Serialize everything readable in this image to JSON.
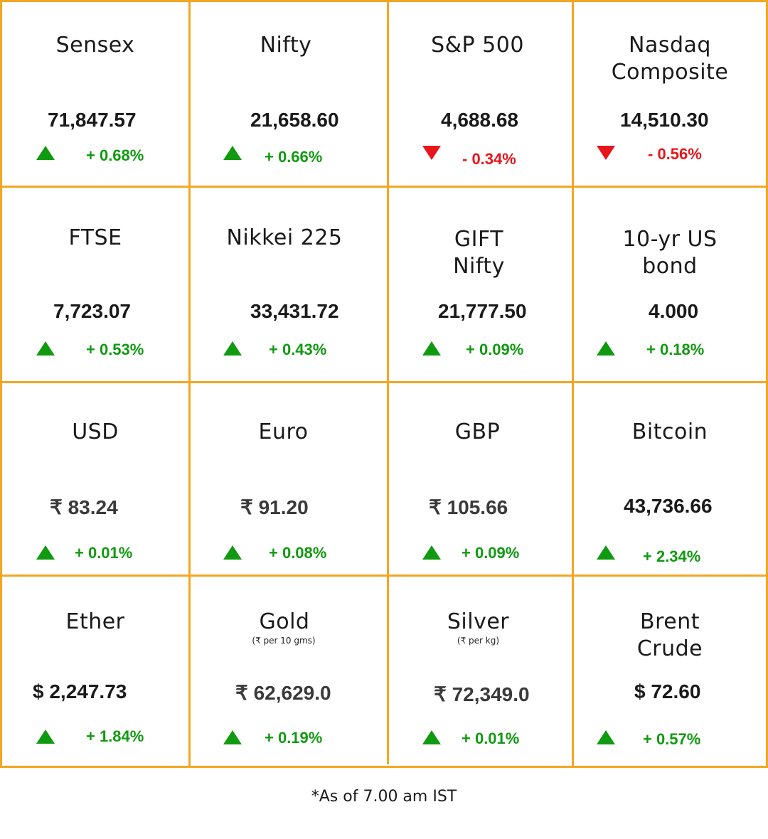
{
  "colors": {
    "border": "#f5a623",
    "up": "#109a10",
    "down": "#e8161b"
  },
  "cells": [
    {
      "title": "Sensex",
      "subtitle": "",
      "value": "71,847.57",
      "change": "+ 0.68%",
      "direction": "up"
    },
    {
      "title": "Nifty",
      "subtitle": "",
      "value": "21,658.60",
      "change": "+ 0.66%",
      "direction": "up"
    },
    {
      "title": "S&P 500",
      "subtitle": "",
      "value": "4,688.68",
      "change": "- 0.34%",
      "direction": "down"
    },
    {
      "title": "Nasdaq\nComposite",
      "subtitle": "",
      "value": "14,510.30",
      "change": "- 0.56%",
      "direction": "down"
    },
    {
      "title": "FTSE",
      "subtitle": "",
      "value": "7,723.07",
      "change": "+ 0.53%",
      "direction": "up"
    },
    {
      "title": "Nikkei 225",
      "subtitle": "",
      "value": "33,431.72",
      "change": "+ 0.43%",
      "direction": "up"
    },
    {
      "title": "GIFT\nNifty",
      "subtitle": "",
      "value": "21,777.50",
      "change": "+ 0.09%",
      "direction": "up"
    },
    {
      "title": "10-yr US\nbond",
      "subtitle": "",
      "value": "4.000",
      "change": "+ 0.18%",
      "direction": "up"
    },
    {
      "title": "USD",
      "subtitle": "",
      "value": "₹ 83.24",
      "change": "+ 0.01%",
      "direction": "up"
    },
    {
      "title": "Euro",
      "subtitle": "",
      "value": "₹ 91.20",
      "change": "+ 0.08%",
      "direction": "up"
    },
    {
      "title": "GBP",
      "subtitle": "",
      "value": "₹ 105.66",
      "change": "+ 0.09%",
      "direction": "up"
    },
    {
      "title": "Bitcoin",
      "subtitle": "",
      "value": "43,736.66",
      "change": "+ 2.34%",
      "direction": "up"
    },
    {
      "title": "Ether",
      "subtitle": "",
      "value": "$ 2,247.73",
      "change": "+ 1.84%",
      "direction": "up"
    },
    {
      "title": "Gold",
      "subtitle": "(₹ per 10 gms)",
      "value": "₹ 62,629.0",
      "change": "+ 0.19%",
      "direction": "up"
    },
    {
      "title": "Silver",
      "subtitle": "(₹ per kg)",
      "value": "₹ 72,349.0",
      "change": "+ 0.01%",
      "direction": "up"
    },
    {
      "title": "Brent\nCrude",
      "subtitle": "",
      "value": "$ 72.60",
      "change": "+ 0.57%",
      "direction": "up"
    }
  ],
  "footer": "*As of 7.00 am IST"
}
